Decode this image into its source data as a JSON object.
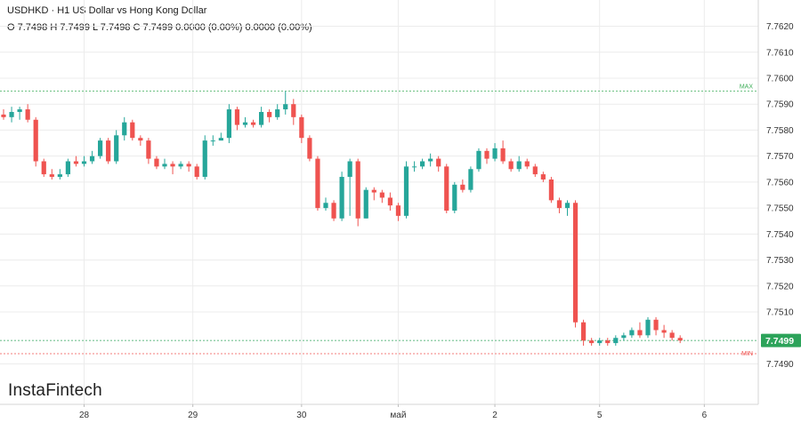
{
  "header": {
    "title": "USDHKD · H1 US Dollar vs Hong Kong Dollar",
    "ohlc": "O 7.7498 H 7.7499 L 7.7498 C 7.7499 0.0000 (0.00%) 0.0000 (0.00%)"
  },
  "logo": {
    "text": "InstaFintech"
  },
  "colors": {
    "up": "#26a69a",
    "down": "#ef5350",
    "max_line": "#3fae5a",
    "min_line": "#ef5350",
    "last_price_bg": "#2ca35a"
  },
  "chart_data": {
    "type": "candlestick",
    "title": "USDHKD · H1 US Dollar vs Hong Kong Dollar",
    "ylim": [
      7.7484,
      7.7626
    ],
    "y_ticks": [
      7.762,
      7.761,
      7.76,
      7.759,
      7.758,
      7.757,
      7.756,
      7.755,
      7.754,
      7.753,
      7.752,
      7.751,
      7.749
    ],
    "y_tick_labels": [
      "7.7620",
      "7.7610",
      "7.7600",
      "7.7590",
      "7.7580",
      "7.7570",
      "7.7560",
      "7.7550",
      "7.7540",
      "7.7530",
      "7.7520",
      "7.7510",
      "7.7490"
    ],
    "x_labels": [
      "28",
      "29",
      "30",
      "май",
      "2",
      "5",
      "6"
    ],
    "x_label_positions": [
      10,
      23.5,
      37,
      49,
      61,
      74,
      87
    ],
    "max_label": "MAX",
    "min_label": "MIN",
    "max_value": 7.7595,
    "min_value": 7.7497,
    "last_price": 7.7499,
    "last_price_label": "7.7499",
    "candles": [
      [
        7.7586,
        7.7585,
        7.7588,
        7.7584
      ],
      [
        7.7585,
        7.7587,
        7.7589,
        7.7583
      ],
      [
        7.7587,
        7.7588,
        7.7589,
        7.7584
      ],
      [
        7.7588,
        7.7584,
        7.759,
        7.7583
      ],
      [
        7.7584,
        7.7568,
        7.7585,
        7.7566
      ],
      [
        7.7568,
        7.7563,
        7.7569,
        7.7562
      ],
      [
        7.7563,
        7.7562,
        7.7565,
        7.7561
      ],
      [
        7.7562,
        7.7563,
        7.7565,
        7.7561
      ],
      [
        7.7563,
        7.7568,
        7.7569,
        7.7562
      ],
      [
        7.7568,
        7.7567,
        7.757,
        7.7566
      ],
      [
        7.7567,
        7.7568,
        7.757,
        7.7566
      ],
      [
        7.7568,
        7.757,
        7.7572,
        7.7567
      ],
      [
        7.757,
        7.7576,
        7.7577,
        7.7569
      ],
      [
        7.7576,
        7.7568,
        7.7577,
        7.7567
      ],
      [
        7.7568,
        7.7578,
        7.758,
        7.7567
      ],
      [
        7.7578,
        7.7583,
        7.7585,
        7.7576
      ],
      [
        7.7583,
        7.7577,
        7.7584,
        7.7576
      ],
      [
        7.7577,
        7.7576,
        7.7578,
        7.7574
      ],
      [
        7.7576,
        7.7569,
        7.7577,
        7.7567
      ],
      [
        7.7569,
        7.7566,
        7.757,
        7.7565
      ],
      [
        7.7566,
        7.7567,
        7.7569,
        7.7565
      ],
      [
        7.7567,
        7.7566,
        7.7568,
        7.7563
      ],
      [
        7.7566,
        7.7567,
        7.7568,
        7.7565
      ],
      [
        7.7567,
        7.7566,
        7.7568,
        7.7564
      ],
      [
        7.7566,
        7.7562,
        7.7567,
        7.7561
      ],
      [
        7.7562,
        7.7576,
        7.7578,
        7.7561
      ],
      [
        7.7576,
        7.7576,
        7.7578,
        7.7574
      ],
      [
        7.7576,
        7.7577,
        7.7579,
        7.7576
      ],
      [
        7.7577,
        7.7588,
        7.759,
        7.7575
      ],
      [
        7.7588,
        7.7582,
        7.7589,
        7.758
      ],
      [
        7.7582,
        7.7583,
        7.7585,
        7.7581
      ],
      [
        7.7583,
        7.7582,
        7.7584,
        7.7581
      ],
      [
        7.7582,
        7.7587,
        7.7589,
        7.7581
      ],
      [
        7.7587,
        7.7585,
        7.7588,
        7.7583
      ],
      [
        7.7585,
        7.7588,
        7.759,
        7.7584
      ],
      [
        7.7588,
        7.759,
        7.7595,
        7.7586
      ],
      [
        7.759,
        7.7585,
        7.7592,
        7.7582
      ],
      [
        7.7585,
        7.7577,
        7.7586,
        7.7575
      ],
      [
        7.7577,
        7.7569,
        7.7578,
        7.7568
      ],
      [
        7.7569,
        7.755,
        7.757,
        7.7549
      ],
      [
        7.755,
        7.7552,
        7.7554,
        7.7549
      ],
      [
        7.7552,
        7.7546,
        7.7553,
        7.7545
      ],
      [
        7.7546,
        7.7562,
        7.7564,
        7.7545
      ],
      [
        7.7562,
        7.7568,
        7.7569,
        7.7547
      ],
      [
        7.7568,
        7.7546,
        7.7569,
        7.7543
      ],
      [
        7.7546,
        7.7557,
        7.7558,
        7.7546
      ],
      [
        7.7557,
        7.7556,
        7.7558,
        7.7553
      ],
      [
        7.7556,
        7.7554,
        7.7557,
        7.7552
      ],
      [
        7.7554,
        7.7551,
        7.7556,
        7.7549
      ],
      [
        7.7551,
        7.7547,
        7.7552,
        7.7545
      ],
      [
        7.7547,
        7.7566,
        7.7568,
        7.7546
      ],
      [
        7.7566,
        7.7566,
        7.7568,
        7.7564
      ],
      [
        7.7566,
        7.7568,
        7.7569,
        7.7565
      ],
      [
        7.7568,
        7.7569,
        7.7571,
        7.7566
      ],
      [
        7.7569,
        7.7566,
        7.757,
        7.7564
      ],
      [
        7.7566,
        7.7549,
        7.7567,
        7.7548
      ],
      [
        7.7549,
        7.7559,
        7.756,
        7.7548
      ],
      [
        7.7559,
        7.7557,
        7.7561,
        7.7556
      ],
      [
        7.7557,
        7.7565,
        7.7566,
        7.7556
      ],
      [
        7.7565,
        7.7572,
        7.7573,
        7.7564
      ],
      [
        7.7572,
        7.7569,
        7.7573,
        7.7567
      ],
      [
        7.7569,
        7.7573,
        7.7575,
        7.7568
      ],
      [
        7.7573,
        7.7568,
        7.7576,
        7.7567
      ],
      [
        7.7568,
        7.7565,
        7.7569,
        7.7564
      ],
      [
        7.7565,
        7.7568,
        7.757,
        7.7564
      ],
      [
        7.7568,
        7.7566,
        7.7569,
        7.7565
      ],
      [
        7.7566,
        7.7563,
        7.7567,
        7.7562
      ],
      [
        7.7563,
        7.7561,
        7.7564,
        7.756
      ],
      [
        7.7561,
        7.7553,
        7.7562,
        7.7552
      ],
      [
        7.7553,
        7.755,
        7.7554,
        7.7548
      ],
      [
        7.755,
        7.7552,
        7.7553,
        7.7547
      ],
      [
        7.7552,
        7.7506,
        7.7553,
        7.7504
      ],
      [
        7.7506,
        7.7499,
        7.7507,
        7.7497
      ],
      [
        7.7499,
        7.7498,
        7.75,
        7.7497
      ],
      [
        7.7498,
        7.7499,
        7.75,
        7.7497
      ],
      [
        7.7499,
        7.7498,
        7.75,
        7.7497
      ],
      [
        7.7498,
        7.75,
        7.7501,
        7.7497
      ],
      [
        7.75,
        7.7501,
        7.7502,
        7.7499
      ],
      [
        7.7501,
        7.7503,
        7.7504,
        7.75
      ],
      [
        7.7503,
        7.7501,
        7.7506,
        7.75
      ],
      [
        7.7501,
        7.7507,
        7.7508,
        7.75
      ],
      [
        7.7507,
        7.7503,
        7.7508,
        7.7501
      ],
      [
        7.7503,
        7.7502,
        7.7505,
        7.75
      ],
      [
        7.7502,
        7.75,
        7.7503,
        7.7499
      ],
      [
        7.75,
        7.7499,
        7.7501,
        7.7498
      ]
    ]
  }
}
